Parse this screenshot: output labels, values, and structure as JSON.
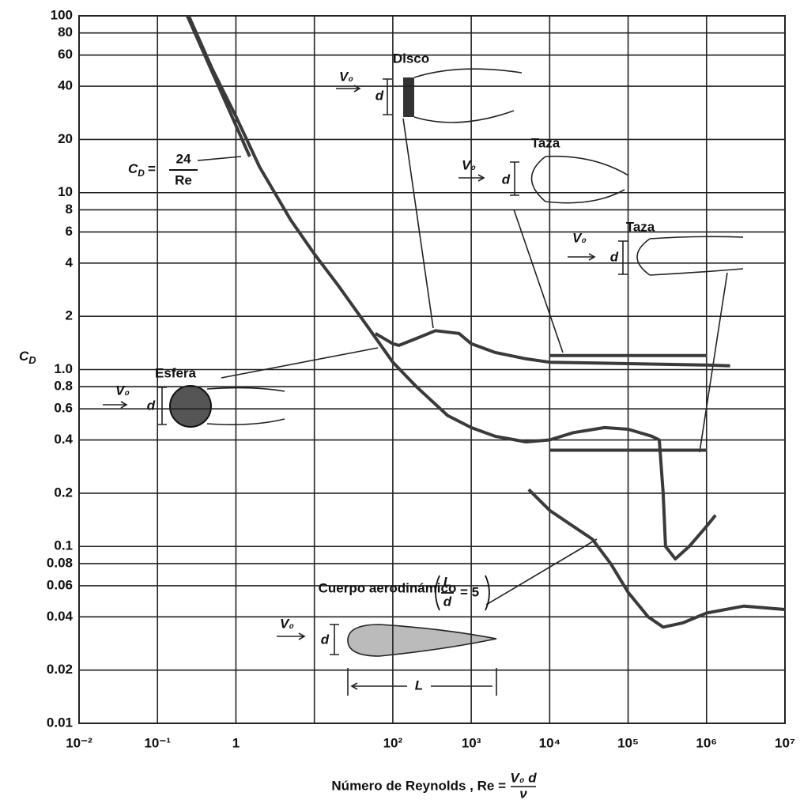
{
  "chart_data": {
    "type": "line",
    "xlabel": "Número de Reynolds , Re =",
    "xlabel_fraction": {
      "num": "V₀ d",
      "den": "ν"
    },
    "ylabel": {
      "main": "C",
      "sub": "D"
    },
    "log_x": true,
    "log_y": true,
    "grid": true,
    "xlim": [
      0.01,
      10000000
    ],
    "ylim": [
      0.01,
      100
    ],
    "xticks": [
      {
        "value": 0.01,
        "label": "10⁻²"
      },
      {
        "value": 0.1,
        "label": "10⁻¹"
      },
      1,
      {
        "value": 10,
        "label": null
      },
      {
        "value": 100,
        "label": "10²"
      },
      {
        "value": 1000,
        "label": "10³"
      },
      {
        "value": 10000,
        "label": "10⁴"
      },
      {
        "value": 100000,
        "label": "10⁵"
      },
      {
        "value": 1000000,
        "label": "10⁶"
      },
      {
        "value": 10000000,
        "label": "10⁷"
      }
    ],
    "yticks": [
      0.01,
      0.02,
      0.04,
      0.06,
      0.08,
      0.1,
      0.2,
      0.4,
      0.6,
      0.8,
      {
        "value": 1,
        "label": "1.0"
      },
      2,
      4,
      6,
      8,
      10,
      20,
      40,
      60,
      80,
      100
    ],
    "stokes_label": {
      "lhs": "C",
      "sub": "D",
      "eq": "=",
      "num": "24",
      "den": "Re"
    },
    "diagram_labels": {
      "velocity": "V₀",
      "diameter": "d",
      "length": "L",
      "ratio_num": "L",
      "ratio_den": "d",
      "ratio_eq": "= 5"
    },
    "series": [
      {
        "name": "Esfera",
        "color": "#3a3a3a",
        "x": [
          0.25,
          0.5,
          1,
          2,
          5,
          10,
          20,
          50,
          100,
          200,
          500,
          1000,
          2000,
          5000,
          10000,
          20000,
          50000,
          100000,
          200000,
          250000,
          280000,
          300000,
          400000,
          600000,
          1000000,
          1300000
        ],
        "values": [
          100,
          50,
          27,
          14,
          7,
          4.5,
          3,
          1.7,
          1.1,
          0.8,
          0.55,
          0.47,
          0.42,
          0.39,
          0.4,
          0.44,
          0.47,
          0.46,
          0.42,
          0.4,
          0.2,
          0.1,
          0.085,
          0.1,
          0.13,
          0.15
        ]
      },
      {
        "name": "Disco",
        "color": "#3a3a3a",
        "x": [
          60,
          100,
          120,
          200,
          350,
          700,
          1000,
          2000,
          5000,
          10000,
          100000,
          1000000,
          2000000
        ],
        "values": [
          1.6,
          1.4,
          1.37,
          1.5,
          1.66,
          1.6,
          1.4,
          1.25,
          1.15,
          1.1,
          1.08,
          1.06,
          1.05
        ]
      },
      {
        "name": "Taza",
        "color": "#3a3a3a",
        "x": [
          10000,
          1000000
        ],
        "values": [
          1.2,
          1.2
        ]
      },
      {
        "name": "Taza",
        "color": "#3a3a3a",
        "x": [
          10000,
          1000000
        ],
        "values": [
          0.35,
          0.35
        ]
      },
      {
        "name": "Cuerpo aerodinámico",
        "color": "#3a3a3a",
        "x": [
          5400,
          10000,
          20000,
          35000,
          60000,
          100000,
          180000,
          280000,
          500000,
          1000000,
          3000000,
          10000000
        ],
        "values": [
          0.21,
          0.16,
          0.13,
          0.11,
          0.08,
          0.055,
          0.04,
          0.035,
          0.037,
          0.042,
          0.046,
          0.044
        ]
      },
      {
        "name": null,
        "color": "#3a3a3a",
        "x": [
          0.24,
          1.5
        ],
        "values": [
          100,
          16
        ]
      }
    ]
  }
}
